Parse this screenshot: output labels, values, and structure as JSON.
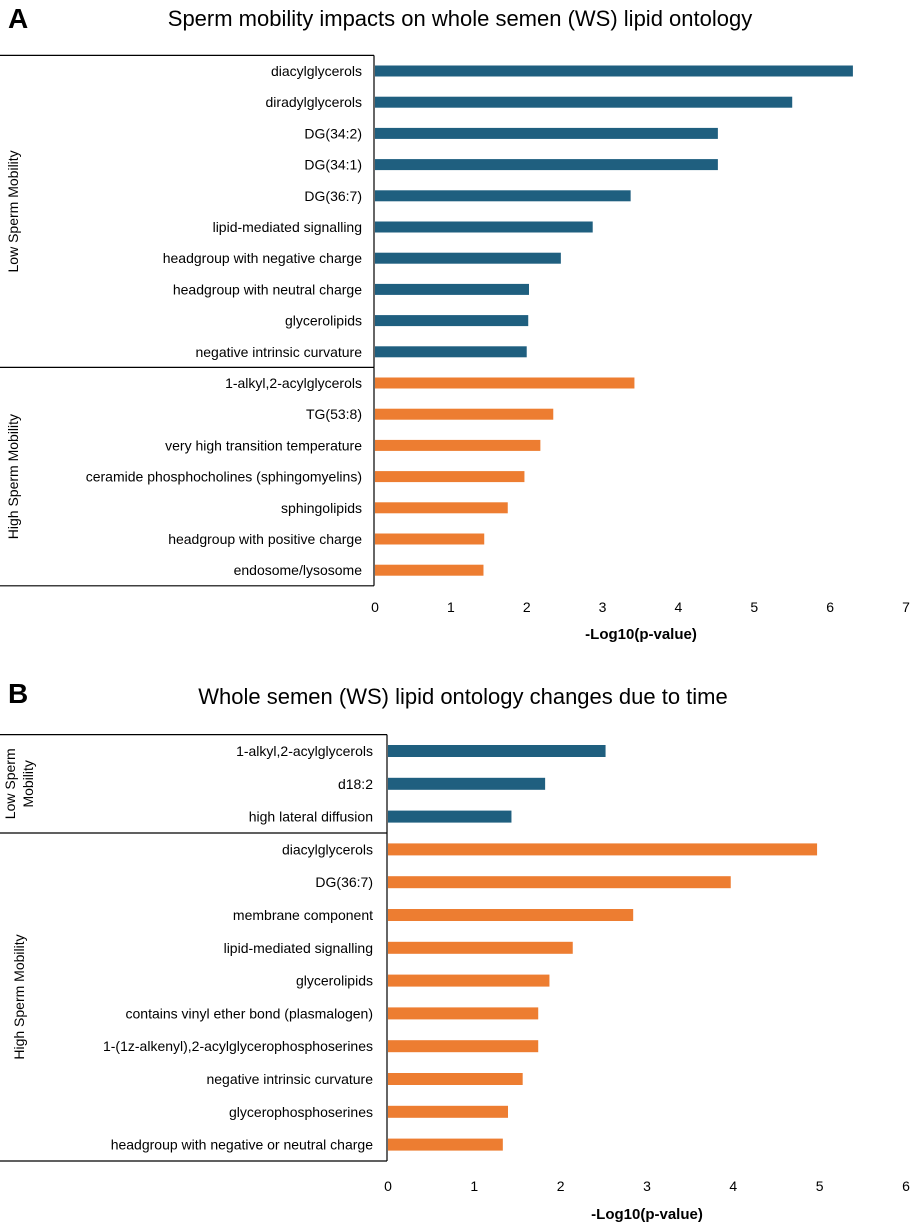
{
  "chart_data": [
    {
      "type": "bar",
      "orientation": "horizontal",
      "panel_label": "A",
      "title": "Sperm mobility impacts on whole semen (WS) lipid ontology",
      "xlabel": "-Log10(p-value)",
      "xlim": [
        0,
        7
      ],
      "xticks": [
        "0",
        "1",
        "2",
        "3",
        "4",
        "5",
        "6",
        "7"
      ],
      "groups": [
        {
          "name": "Low Sperm Mobility",
          "color": "#1f5f7f",
          "categories": [
            "diacylglycerols",
            "diradylglycerols",
            "DG(34:2)",
            "DG(34:1)",
            "DG(36:7)",
            "lipid-mediated signalling",
            "headgroup with negative charge",
            "headgroup with neutral charge",
            "glycerolipids",
            "negative intrinsic curvature"
          ],
          "values": [
            6.3,
            5.5,
            4.52,
            4.52,
            3.37,
            2.87,
            2.45,
            2.03,
            2.02,
            2.0
          ]
        },
        {
          "name": "High Sperm Mobility",
          "color": "#ed7d31",
          "categories": [
            "1-alkyl,2-acylglycerols",
            "TG(53:8)",
            "very high transition temperature",
            "ceramide phosphocholines (sphingomyelins)",
            "sphingolipids",
            "headgroup with positive charge",
            "endosome/lysosome"
          ],
          "values": [
            3.42,
            2.35,
            2.18,
            1.97,
            1.75,
            1.44,
            1.43
          ]
        }
      ]
    },
    {
      "type": "bar",
      "orientation": "horizontal",
      "panel_label": "B",
      "title": "Whole semen (WS) lipid ontology changes due to time",
      "xlabel": "-Log10(p-value)",
      "xlim": [
        0,
        6
      ],
      "xticks": [
        "0",
        "1",
        "2",
        "3",
        "4",
        "5",
        "6"
      ],
      "groups": [
        {
          "name": "Low Sperm Mobility",
          "color": "#1f5f7f",
          "categories": [
            "1-alkyl,2-acylglycerols",
            "d18:2",
            "high lateral diffusion"
          ],
          "values": [
            2.52,
            1.82,
            1.43
          ]
        },
        {
          "name": "High Sperm Mobility",
          "color": "#ed7d31",
          "categories": [
            "diacylglycerols",
            "DG(36:7)",
            "membrane component",
            "lipid-mediated signalling",
            "glycerolipids",
            "contains vinyl ether bond (plasmalogen)",
            "1-(1z-alkenyl),2-acylglycerophosphoserines",
            "negative intrinsic curvature",
            "glycerophosphoserines",
            "headgroup with negative or neutral charge"
          ],
          "values": [
            4.97,
            3.97,
            2.84,
            2.14,
            1.87,
            1.74,
            1.74,
            1.56,
            1.39,
            1.33
          ]
        }
      ]
    }
  ]
}
